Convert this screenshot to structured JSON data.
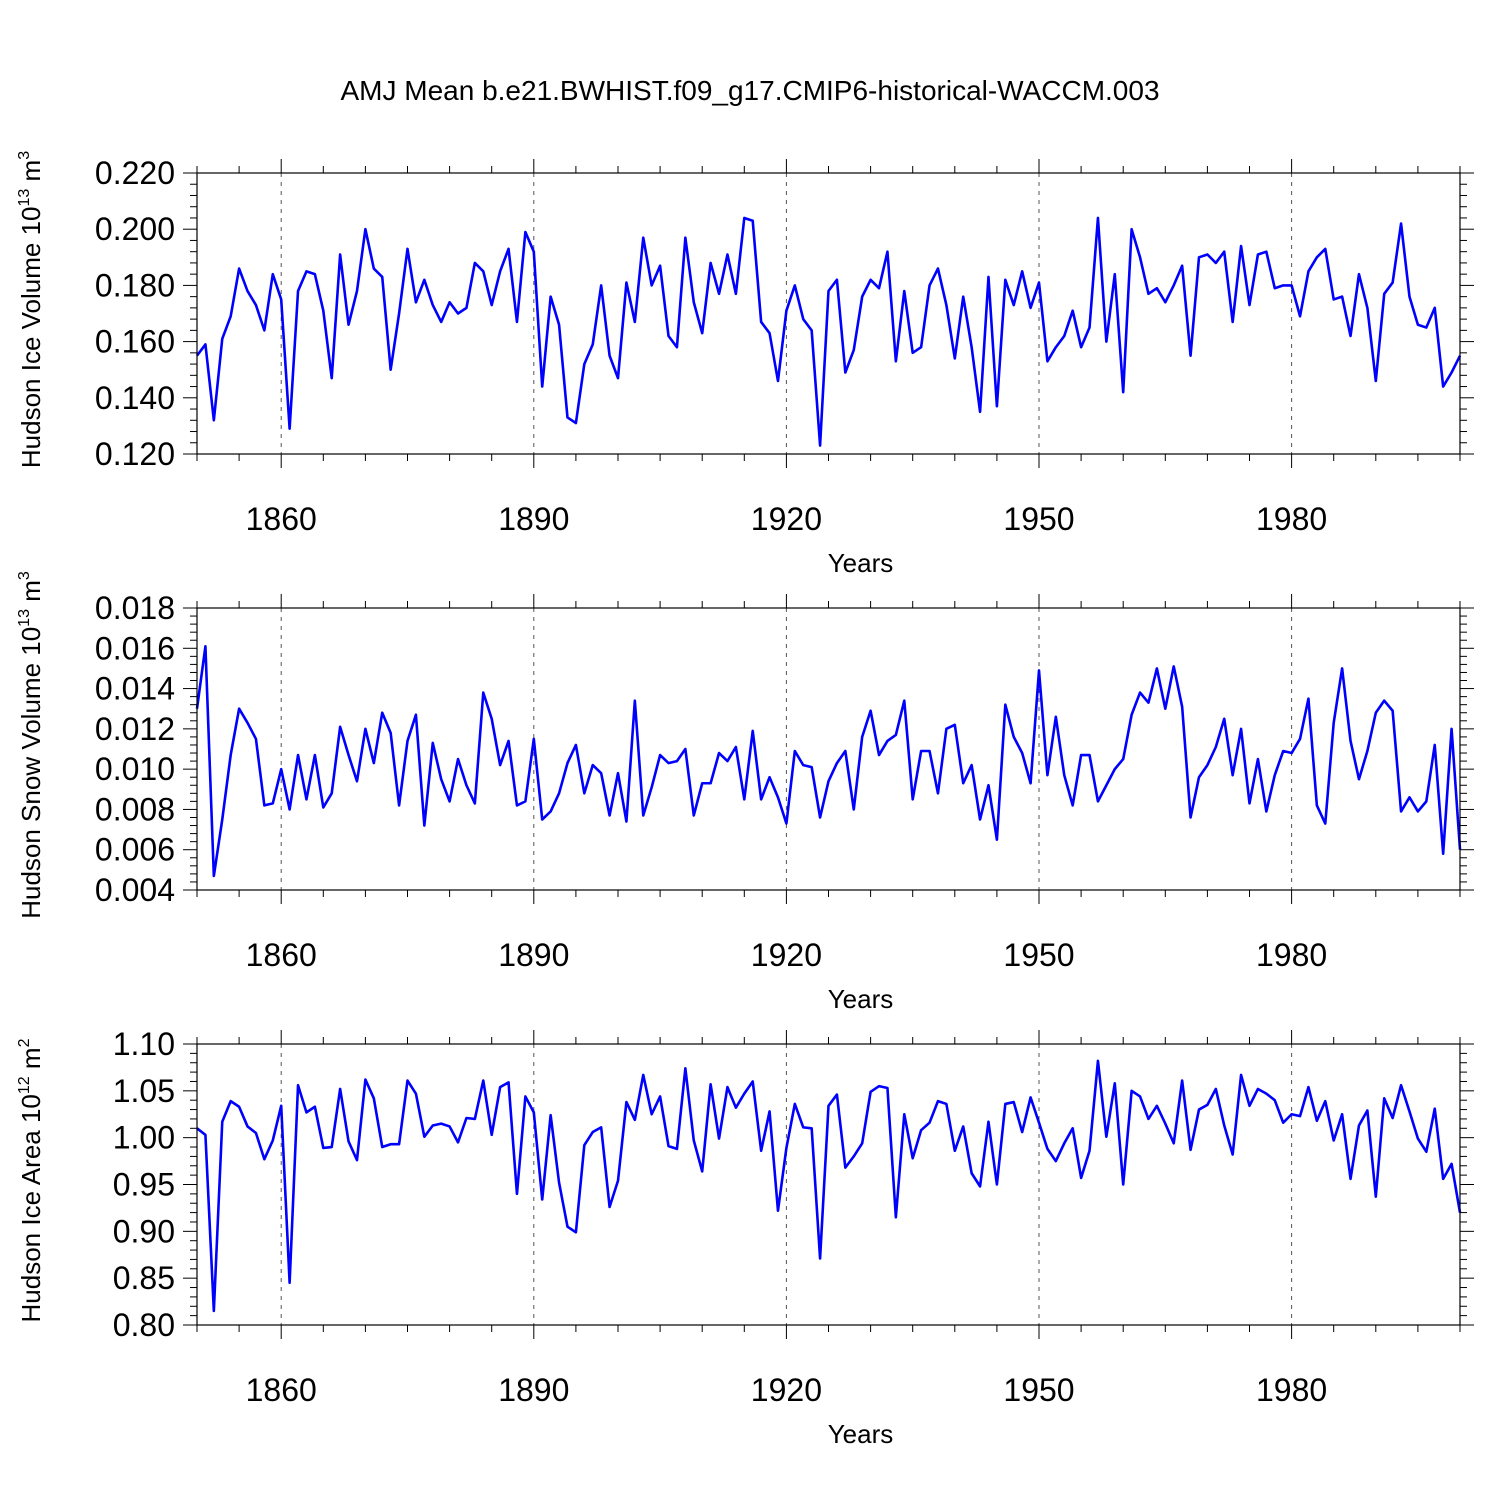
{
  "figure": {
    "title": "AMJ Mean b.e21.BWHIST.f09_g17.CMIP6-historical-WACCM.003"
  },
  "chart_data": [
    {
      "type": "line",
      "title": "AMJ Mean b.e21.BWHIST.f09_g17.CMIP6-historical-WACCM.003",
      "xlabel": "Years",
      "ylabel": "Hudson Ice Volume 10",
      "ylabel_exp": "13",
      "ylabel_unit": " m",
      "ylabel_unit_exp": "3",
      "xlim": [
        1850,
        2000
      ],
      "ylim": [
        0.12,
        0.22
      ],
      "xticks": [
        1860,
        1890,
        1920,
        1950,
        1980
      ],
      "xtick_labels": [
        "1860",
        "1890",
        "1920",
        "1950",
        "1980"
      ],
      "yticks": [
        0.12,
        0.14,
        0.16,
        0.18,
        0.2,
        0.22
      ],
      "ytick_labels": [
        "0.120",
        "0.140",
        "0.160",
        "0.180",
        "0.200",
        "0.220"
      ],
      "grid_x": true,
      "series": [
        {
          "name": "Hudson Ice Volume",
          "color": "#0000ff",
          "x_start": 1850,
          "x_step": 1,
          "values": [
            0.155,
            0.159,
            0.132,
            0.161,
            0.169,
            0.186,
            0.178,
            0.173,
            0.164,
            0.184,
            0.175,
            0.129,
            0.178,
            0.185,
            0.184,
            0.171,
            0.147,
            0.191,
            0.166,
            0.178,
            0.2,
            0.186,
            0.183,
            0.15,
            0.17,
            0.193,
            0.174,
            0.182,
            0.173,
            0.167,
            0.174,
            0.17,
            0.172,
            0.188,
            0.185,
            0.173,
            0.185,
            0.193,
            0.167,
            0.199,
            0.192,
            0.144,
            0.176,
            0.166,
            0.133,
            0.131,
            0.152,
            0.159,
            0.18,
            0.155,
            0.147,
            0.181,
            0.167,
            0.197,
            0.18,
            0.187,
            0.162,
            0.158,
            0.197,
            0.174,
            0.163,
            0.188,
            0.177,
            0.191,
            0.177,
            0.204,
            0.203,
            0.167,
            0.163,
            0.146,
            0.171,
            0.18,
            0.168,
            0.164,
            0.123,
            0.178,
            0.182,
            0.149,
            0.157,
            0.176,
            0.182,
            0.179,
            0.192,
            0.153,
            0.178,
            0.156,
            0.158,
            0.18,
            0.186,
            0.173,
            0.154,
            0.176,
            0.158,
            0.135,
            0.183,
            0.137,
            0.182,
            0.173,
            0.185,
            0.172,
            0.181,
            0.153,
            0.158,
            0.162,
            0.171,
            0.158,
            0.165,
            0.204,
            0.16,
            0.184,
            0.142,
            0.2,
            0.19,
            0.177,
            0.179,
            0.174,
            0.18,
            0.187,
            0.155,
            0.19,
            0.191,
            0.188,
            0.192,
            0.167,
            0.194,
            0.173,
            0.191,
            0.192,
            0.179,
            0.18,
            0.18,
            0.169,
            0.185,
            0.19,
            0.193,
            0.175,
            0.176,
            0.162,
            0.184,
            0.172,
            0.146,
            0.177,
            0.181,
            0.202,
            0.176,
            0.166,
            0.165,
            0.172,
            0.144,
            0.149,
            0.155
          ]
        }
      ]
    },
    {
      "type": "line",
      "xlabel": "Years",
      "ylabel": "Hudson Snow Volume 10",
      "ylabel_exp": "13",
      "ylabel_unit": " m",
      "ylabel_unit_exp": "3",
      "xlim": [
        1850,
        2000
      ],
      "ylim": [
        0.004,
        0.018
      ],
      "xticks": [
        1860,
        1890,
        1920,
        1950,
        1980
      ],
      "xtick_labels": [
        "1860",
        "1890",
        "1920",
        "1950",
        "1980"
      ],
      "yticks": [
        0.004,
        0.006,
        0.008,
        0.01,
        0.012,
        0.014,
        0.016,
        0.018
      ],
      "ytick_labels": [
        "0.004",
        "0.006",
        "0.008",
        "0.010",
        "0.012",
        "0.014",
        "0.016",
        "0.018"
      ],
      "grid_x": true,
      "series": [
        {
          "name": "Hudson Snow Volume",
          "color": "#0000ff",
          "x_start": 1850,
          "x_step": 1,
          "values": [
            0.013,
            0.0161,
            0.0047,
            0.0075,
            0.0107,
            0.013,
            0.0123,
            0.0115,
            0.0082,
            0.0083,
            0.01,
            0.008,
            0.0107,
            0.0085,
            0.0107,
            0.0081,
            0.0088,
            0.0121,
            0.0107,
            0.0094,
            0.012,
            0.0103,
            0.0128,
            0.0118,
            0.0082,
            0.0114,
            0.0127,
            0.0072,
            0.0113,
            0.0095,
            0.0084,
            0.0105,
            0.0092,
            0.0083,
            0.0138,
            0.0125,
            0.0102,
            0.0114,
            0.0082,
            0.0084,
            0.0115,
            0.0075,
            0.0079,
            0.0088,
            0.0103,
            0.0112,
            0.0088,
            0.0102,
            0.0098,
            0.0077,
            0.0098,
            0.0074,
            0.0134,
            0.0077,
            0.0091,
            0.0107,
            0.0103,
            0.0104,
            0.011,
            0.0077,
            0.0093,
            0.0093,
            0.0108,
            0.0104,
            0.0111,
            0.0085,
            0.0119,
            0.0085,
            0.0096,
            0.0086,
            0.0073,
            0.0109,
            0.0102,
            0.0101,
            0.0076,
            0.0094,
            0.0103,
            0.0109,
            0.008,
            0.0116,
            0.0129,
            0.0107,
            0.0114,
            0.0117,
            0.0134,
            0.0085,
            0.0109,
            0.0109,
            0.0088,
            0.012,
            0.0122,
            0.0093,
            0.0102,
            0.0075,
            0.0092,
            0.0065,
            0.0132,
            0.0116,
            0.0108,
            0.0093,
            0.0149,
            0.0097,
            0.0126,
            0.0097,
            0.0082,
            0.0107,
            0.0107,
            0.0084,
            0.0092,
            0.01,
            0.0105,
            0.0127,
            0.0138,
            0.0133,
            0.015,
            0.013,
            0.0151,
            0.0131,
            0.0076,
            0.0096,
            0.0102,
            0.0111,
            0.0125,
            0.0097,
            0.012,
            0.0083,
            0.0105,
            0.0079,
            0.0097,
            0.0109,
            0.0108,
            0.0115,
            0.0135,
            0.0082,
            0.0073,
            0.0123,
            0.015,
            0.0114,
            0.0095,
            0.0109,
            0.0128,
            0.0134,
            0.0129,
            0.0079,
            0.0086,
            0.0079,
            0.0084,
            0.0112,
            0.0058,
            0.012,
            0.006
          ]
        }
      ]
    },
    {
      "type": "line",
      "xlabel": "Years",
      "ylabel": "Hudson Ice Area 10",
      "ylabel_exp": "12",
      "ylabel_unit": " m",
      "ylabel_unit_exp": "2",
      "xlim": [
        1850,
        2000
      ],
      "ylim": [
        0.8,
        1.1
      ],
      "xticks": [
        1860,
        1890,
        1920,
        1950,
        1980
      ],
      "xtick_labels": [
        "1860",
        "1890",
        "1920",
        "1950",
        "1980"
      ],
      "yticks": [
        0.8,
        0.85,
        0.9,
        0.95,
        1.0,
        1.05,
        1.1
      ],
      "ytick_labels": [
        "0.80",
        "0.85",
        "0.90",
        "0.95",
        "1.00",
        "1.05",
        "1.10"
      ],
      "grid_x": true,
      "series": [
        {
          "name": "Hudson Ice Area",
          "color": "#0000ff",
          "x_start": 1850,
          "x_step": 1,
          "values": [
            1.01,
            1.003,
            0.815,
            1.017,
            1.039,
            1.033,
            1.012,
            1.005,
            0.977,
            0.997,
            1.034,
            0.845,
            1.056,
            1.027,
            1.033,
            0.989,
            0.99,
            1.052,
            0.996,
            0.976,
            1.062,
            1.042,
            0.99,
            0.993,
            0.993,
            1.061,
            1.047,
            1.001,
            1.013,
            1.015,
            1.012,
            0.995,
            1.021,
            1.02,
            1.061,
            1.003,
            1.054,
            1.059,
            0.94,
            1.044,
            1.027,
            0.934,
            1.024,
            0.952,
            0.905,
            0.899,
            0.992,
            1.006,
            1.011,
            0.926,
            0.954,
            1.038,
            1.019,
            1.067,
            1.025,
            1.044,
            0.991,
            0.988,
            1.074,
            0.997,
            0.964,
            1.057,
            0.999,
            1.054,
            1.032,
            1.047,
            1.06,
            0.986,
            1.028,
            0.922,
            0.989,
            1.036,
            1.011,
            1.01,
            0.871,
            1.034,
            1.046,
            0.968,
            0.98,
            0.994,
            1.049,
            1.055,
            1.053,
            0.915,
            1.025,
            0.978,
            1.008,
            1.016,
            1.039,
            1.036,
            0.986,
            1.012,
            0.962,
            0.948,
            1.017,
            0.95,
            1.036,
            1.038,
            1.006,
            1.043,
            1.016,
            0.988,
            0.975,
            0.994,
            1.01,
            0.957,
            0.986,
            1.082,
            1.001,
            1.058,
            0.95,
            1.05,
            1.044,
            1.02,
            1.034,
            1.015,
            0.994,
            1.061,
            0.987,
            1.03,
            1.035,
            1.052,
            1.013,
            0.982,
            1.067,
            1.034,
            1.052,
            1.047,
            1.04,
            1.016,
            1.025,
            1.023,
            1.054,
            1.018,
            1.039,
            0.997,
            1.025,
            0.956,
            1.013,
            1.029,
            0.937,
            1.042,
            1.021,
            1.056,
            1.028,
            0.999,
            0.985,
            1.031,
            0.956,
            0.972,
            0.92
          ]
        }
      ]
    }
  ]
}
